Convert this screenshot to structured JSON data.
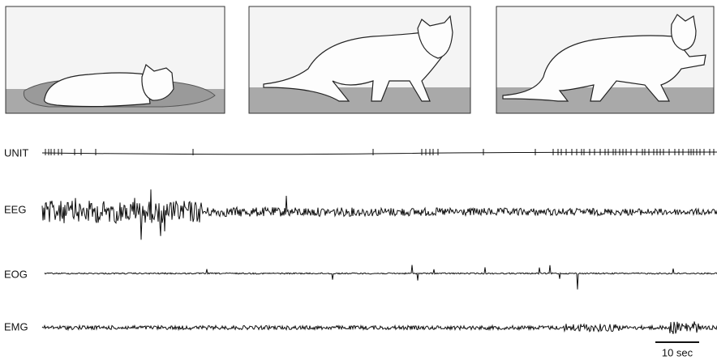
{
  "traces": {
    "unit": "UNIT",
    "eeg": "EEG",
    "eog": "EOG",
    "emg": "EMG"
  },
  "scale_bar": "10 sec"
}
